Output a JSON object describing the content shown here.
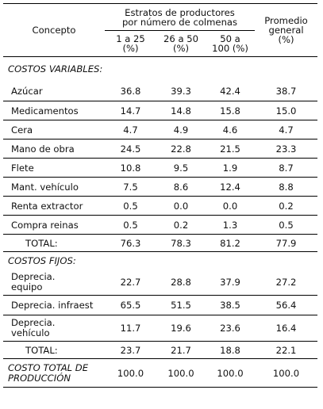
{
  "header": {
    "concepto": "Concepto",
    "estratos": "Estratos de productores por número de colmenas",
    "promedio": "Promedio general (%)",
    "col1": "1 a 25 (%)",
    "col2": "26 a 50 (%)",
    "col3": "50 a 100 (%)"
  },
  "variables": {
    "title": "COSTOS VARIABLES:",
    "rows": [
      {
        "label": "Azúcar",
        "v": [
          "36.8",
          "39.3",
          "42.4",
          "38.7"
        ]
      },
      {
        "label": "Medicamentos",
        "v": [
          "14.7",
          "14.8",
          "15.8",
          "15.0"
        ]
      },
      {
        "label": "Cera",
        "v": [
          "4.7",
          "4.9",
          "4.6",
          "4.7"
        ]
      },
      {
        "label": "Mano de obra",
        "v": [
          "24.5",
          "22.8",
          "21.5",
          "23.3"
        ]
      },
      {
        "label": "Flete",
        "v": [
          "10.8",
          "9.5",
          "1.9",
          "8.7"
        ]
      },
      {
        "label": "Mant. vehículo",
        "v": [
          "7.5",
          "8.6",
          "12.4",
          "8.8"
        ]
      },
      {
        "label": "Renta extractor",
        "v": [
          "0.5",
          "0.0",
          "0.0",
          "0.2"
        ]
      },
      {
        "label": "Compra reinas",
        "v": [
          "0.5",
          "0.2",
          "1.3",
          "0.5"
        ]
      }
    ],
    "total": {
      "label": "TOTAL:",
      "v": [
        "76.3",
        "78.3",
        "81.2",
        "77.9"
      ]
    }
  },
  "fijos": {
    "title": "COSTOS FIJOS:",
    "rows": [
      {
        "label": "Deprecia. equipo",
        "v": [
          "22.7",
          "28.8",
          "37.9",
          "27.2"
        ]
      },
      {
        "label": "Deprecia. infraest",
        "v": [
          "65.5",
          "51.5",
          "38.5",
          "56.4"
        ]
      },
      {
        "label": "Deprecia. vehículo",
        "v": [
          "11.7",
          "19.6",
          "23.6",
          "16.4"
        ]
      }
    ],
    "total": {
      "label": "TOTAL:",
      "v": [
        "23.7",
        "21.7",
        "18.8",
        "22.1"
      ]
    }
  },
  "produccion": {
    "label": "COSTO TOTAL DE PRODUCCIÓN",
    "v": [
      "100.0",
      "100.0",
      "100.0",
      "100.0"
    ]
  }
}
